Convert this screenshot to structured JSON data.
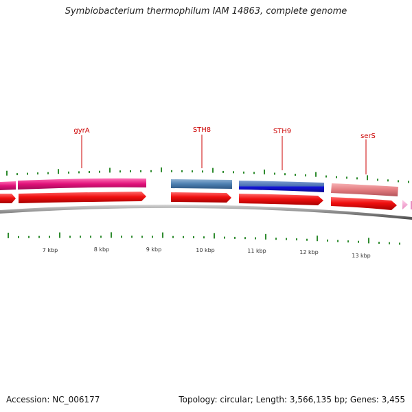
{
  "header": {
    "title": "Symbiobacterium thermophilum IAM 14863, complete genome"
  },
  "footer": {
    "accession": "Accession: NC_006177",
    "summary": "Topology: circular; Length: 3,566,135 bp; Genes: 3,455"
  },
  "genes": [
    {
      "name": "gyrA",
      "color": "#e0117a"
    },
    {
      "name": "STH8",
      "color": "#4d7fb0"
    },
    {
      "name": "STH9",
      "color": "#1a1ad6"
    },
    {
      "name": "serS",
      "color": "#e37c80"
    }
  ],
  "coordinate_ticks": [
    "7 kbp",
    "8 kbp",
    "9 kbp",
    "10 kbp",
    "11 kbp",
    "12 kbp",
    "13 kbp"
  ],
  "colors": {
    "cds_arrow": "#ee1111",
    "gene_label": "#cc0000",
    "leader_line": "#cc0000",
    "gc_ticks": "#2e8b2e",
    "backbone": "#8a8a8a"
  }
}
